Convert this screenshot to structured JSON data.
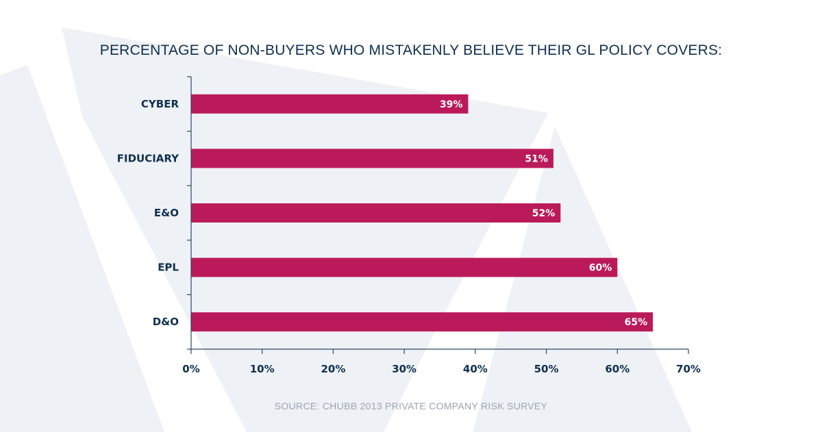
{
  "colors": {
    "bar": "#bb1a5a",
    "text": "#0f2f4f",
    "source": "#9aa4af",
    "background_shape": "#eef1f5"
  },
  "chart_data": {
    "type": "bar",
    "orientation": "horizontal",
    "title": "PERCENTAGE OF NON-BUYERS WHO MISTAKENLY BELIEVE THEIR GL POLICY COVERS:",
    "categories": [
      "CYBER",
      "FIDUCIARY",
      "E&O",
      "EPL",
      "D&O"
    ],
    "values": [
      39,
      51,
      52,
      60,
      65
    ],
    "value_labels": [
      "39%",
      "51%",
      "52%",
      "60%",
      "65%"
    ],
    "xlim": [
      0,
      70
    ],
    "xticks": [
      0,
      10,
      20,
      30,
      40,
      50,
      60,
      70
    ],
    "xtick_labels": [
      "0%",
      "10%",
      "20%",
      "30%",
      "40%",
      "50%",
      "60%",
      "70%"
    ],
    "xlabel": "",
    "ylabel": "",
    "grid": false,
    "source": "SOURCE: CHUBB 2013 PRIVATE COMPANY RISK SURVEY"
  }
}
